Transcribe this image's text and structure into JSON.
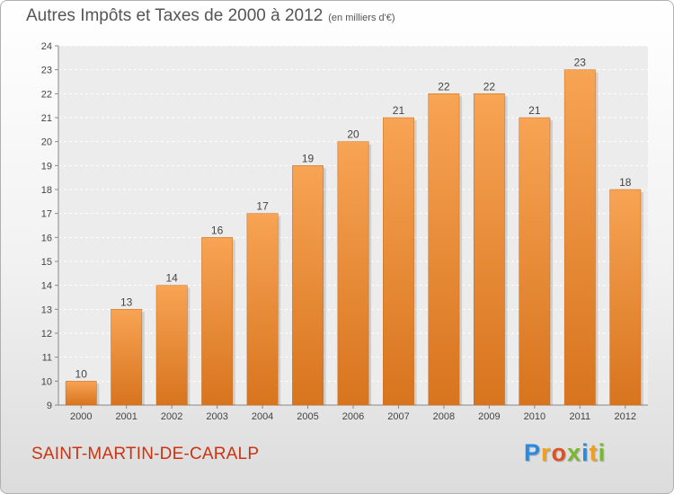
{
  "header": {
    "title": "Autres Impôts et Taxes de 2000 à 2012",
    "subtitle": "(en milliers d'€)"
  },
  "commune_name": "SAINT-MARTIN-DE-CARALP",
  "brand": {
    "letters": [
      "P",
      "r",
      "o",
      "x",
      "i",
      "t",
      "i"
    ],
    "colors": [
      "#2a8ae0",
      "#f0a020",
      "#e05020",
      "#7ab830",
      "#2a8ae0",
      "#f0a020",
      "#7ab830"
    ]
  },
  "chart_data": {
    "type": "bar",
    "categories": [
      "2000",
      "2001",
      "2002",
      "2003",
      "2004",
      "2005",
      "2006",
      "2007",
      "2008",
      "2009",
      "2010",
      "2011",
      "2012"
    ],
    "values": [
      10,
      13,
      14,
      16,
      17,
      19,
      20,
      21,
      22,
      22,
      21,
      23,
      18
    ],
    "data_labels": [
      "10",
      "13",
      "14",
      "16",
      "17",
      "19",
      "20",
      "21",
      "22",
      "22",
      "21",
      "23",
      "18"
    ],
    "y_ticks": [
      "9",
      "10",
      "11",
      "12",
      "13",
      "14",
      "15",
      "16",
      "17",
      "18",
      "19",
      "20",
      "21",
      "22",
      "23",
      "24"
    ],
    "ylim": [
      9,
      24
    ],
    "grid": true,
    "bar_color_top": "#f7a454",
    "bar_color_bottom": "#d8741e"
  }
}
